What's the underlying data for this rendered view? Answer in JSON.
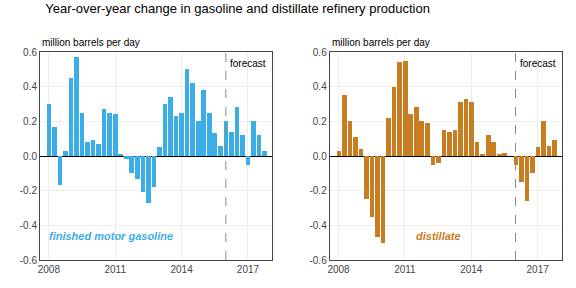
{
  "chart_data": [
    {
      "type": "bar",
      "title": "Year-over-year change in gasoline and distillate refinery production",
      "ylabel": "million barrels per day",
      "color": "#3baee8",
      "x": [
        2008.0,
        2008.25,
        2008.5,
        2008.75,
        2009.0,
        2009.25,
        2009.5,
        2009.75,
        2010.0,
        2010.25,
        2010.5,
        2010.75,
        2011.0,
        2011.25,
        2011.5,
        2011.75,
        2012.0,
        2012.25,
        2012.5,
        2012.75,
        2013.0,
        2013.25,
        2013.5,
        2013.75,
        2014.0,
        2014.25,
        2014.5,
        2014.75,
        2015.0,
        2015.25,
        2015.5,
        2015.75,
        2016.0,
        2016.25,
        2016.5,
        2016.75,
        2017.0,
        2017.25,
        2017.5,
        2017.75
      ],
      "values": [
        0.3,
        0.17,
        -0.17,
        0.03,
        0.45,
        0.57,
        0.25,
        0.08,
        0.09,
        0.07,
        0.27,
        0.25,
        0.24,
        0.01,
        -0.02,
        -0.1,
        -0.13,
        -0.21,
        -0.27,
        -0.18,
        0.05,
        0.3,
        0.34,
        0.23,
        0.25,
        0.5,
        0.42,
        0.2,
        0.38,
        0.25,
        0.13,
        0.06,
        0.2,
        0.14,
        0.28,
        0.12,
        -0.05,
        0.2,
        0.12,
        0.03
      ],
      "xlim": [
        2007.6,
        2018.1
      ],
      "ylim": [
        -0.6,
        0.6
      ],
      "xticks": [
        2008,
        2011,
        2014,
        2017
      ],
      "yticks": [
        -0.6,
        -0.4,
        -0.2,
        {
          "value": 0.0,
          "label": "0.0"
        },
        0.2,
        0.4,
        0.6
      ],
      "grid": true,
      "annotations": [
        {
          "text": "forecast",
          "x": 2016.0
        },
        {
          "text": "finished motor gasoline",
          "x": 2010.8,
          "y": -0.46
        }
      ]
    },
    {
      "type": "bar",
      "ylabel": "million barrels per day",
      "color": "#c87d20",
      "x": [
        2008.0,
        2008.25,
        2008.5,
        2008.75,
        2009.0,
        2009.25,
        2009.5,
        2009.75,
        2010.0,
        2010.25,
        2010.5,
        2010.75,
        2011.0,
        2011.25,
        2011.5,
        2011.75,
        2012.0,
        2012.25,
        2012.5,
        2012.75,
        2013.0,
        2013.25,
        2013.5,
        2013.75,
        2014.0,
        2014.25,
        2014.5,
        2014.75,
        2015.0,
        2015.25,
        2015.5,
        2015.75,
        2016.0,
        2016.25,
        2016.5,
        2016.75,
        2017.0,
        2017.25,
        2017.5,
        2017.75
      ],
      "values": [
        0.03,
        0.35,
        0.2,
        0.11,
        0.04,
        -0.25,
        -0.35,
        -0.47,
        -0.5,
        0.22,
        0.4,
        0.54,
        0.55,
        0.24,
        0.28,
        0.2,
        0.19,
        -0.05,
        -0.04,
        0.15,
        0.14,
        0.15,
        0.31,
        0.33,
        0.31,
        0.08,
        0.01,
        0.12,
        0.08,
        0.01,
        0.02,
        0.0,
        -0.05,
        -0.15,
        -0.26,
        -0.1,
        0.05,
        0.2,
        0.06,
        0.09
      ],
      "xlim": [
        2007.6,
        2018.1
      ],
      "ylim": [
        -0.6,
        0.6
      ],
      "xticks": [
        2008,
        2011,
        2014,
        2017
      ],
      "yticks": [
        -0.6,
        -0.4,
        -0.2,
        {
          "value": 0.0,
          "label": "0.0"
        },
        0.2,
        0.4,
        0.6
      ],
      "grid": true,
      "annotations": [
        {
          "text": "forecast",
          "x": 2016.0
        },
        {
          "text": "distillate",
          "x": 2012.5,
          "y": -0.46
        }
      ]
    }
  ]
}
